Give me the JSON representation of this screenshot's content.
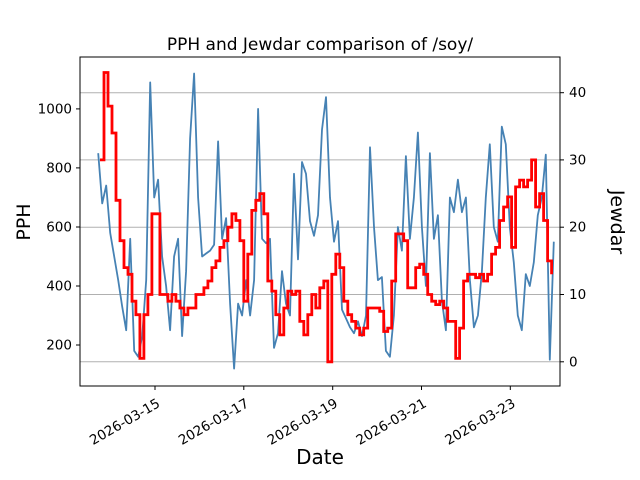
{
  "title": "PPH and Jewdar comparison of /soy/",
  "xlabel": "Date",
  "left_ylabel": "PPH",
  "right_ylabel": "Jewdar",
  "colors": {
    "pph_line": "#4682B4",
    "jewdar_line": "#FF0000",
    "grid": "#B0B0B0",
    "spine": "#000000",
    "background": "#FFFFFF"
  },
  "chart_data": {
    "type": "line",
    "title": "PPH and Jewdar comparison of /soy/",
    "xlabel": "Date",
    "grid": "horizontal, aligned to right (Jewdar) axis ticks",
    "legend": "none",
    "x_axis": {
      "epoch": "2026-03-13 00:00",
      "tick_days": [
        2,
        4,
        6,
        8,
        10
      ],
      "tick_labels": [
        "2026-03-15",
        "2026-03-17",
        "2026-03-19",
        "2026-03-21",
        "2026-03-23"
      ],
      "tick_label_rotation_deg": 30,
      "range_days": [
        0.31,
        11.12
      ]
    },
    "left_axis": {
      "label": "PPH",
      "ticks": [
        200,
        400,
        600,
        800,
        1000
      ],
      "range": [
        61,
        1176
      ]
    },
    "right_axis": {
      "label": "Jewdar",
      "ticks": [
        0,
        10,
        20,
        30,
        40
      ],
      "range": [
        -3.6,
        45.3
      ]
    },
    "series": [
      {
        "name": "PPH",
        "axis": "left",
        "color": "#4682B4",
        "line_width": 1.8,
        "interpolation": "linear",
        "x_start_day": 0.72,
        "x_step_day": 0.09,
        "values": [
          850,
          680,
          740,
          580,
          500,
          420,
          330,
          250,
          560,
          180,
          160,
          230,
          420,
          1090,
          700,
          760,
          500,
          400,
          250,
          500,
          560,
          230,
          450,
          900,
          1120,
          700,
          500,
          510,
          520,
          540,
          890,
          560,
          630,
          340,
          120,
          340,
          300,
          420,
          300,
          420,
          1000,
          560,
          545,
          560,
          190,
          240,
          450,
          340,
          300,
          780,
          490,
          820,
          780,
          620,
          570,
          640,
          930,
          1040,
          700,
          550,
          620,
          320,
          290,
          260,
          240,
          280,
          230,
          300,
          870,
          600,
          420,
          430,
          180,
          160,
          300,
          600,
          520,
          840,
          560,
          700,
          920,
          600,
          400,
          850,
          560,
          640,
          350,
          250,
          700,
          650,
          760,
          650,
          700,
          420,
          260,
          300,
          450,
          700,
          880,
          600,
          550,
          940,
          880,
          600,
          480,
          300,
          250,
          440,
          400,
          480,
          640,
          700,
          845,
          150,
          550
        ]
      },
      {
        "name": "Jewdar",
        "axis": "right",
        "color": "#FF0000",
        "line_width": 2.8,
        "interpolation": "step-post",
        "x_start_day": 0.76,
        "x_step_day": 0.09,
        "values": [
          30,
          43,
          38,
          34,
          24,
          18,
          14,
          13,
          9,
          7,
          0.5,
          7,
          10,
          22,
          22,
          10,
          10,
          9,
          10,
          9,
          8,
          7,
          8,
          8,
          10,
          10,
          11,
          12,
          14,
          15,
          17,
          18,
          20,
          22,
          21,
          18,
          9,
          16,
          22.5,
          24,
          25,
          22,
          12,
          10.5,
          7,
          4,
          8,
          10.5,
          10,
          10.5,
          6,
          4,
          7,
          10,
          8,
          11,
          12,
          0,
          13,
          16,
          14,
          9,
          7,
          6,
          5,
          4,
          5,
          8,
          8,
          8,
          7.5,
          4.5,
          5,
          12,
          19,
          19,
          18,
          11,
          11,
          14,
          14.5,
          13,
          10,
          9,
          8.5,
          9,
          8,
          6,
          6,
          0.5,
          5,
          12,
          13,
          13,
          12.5,
          13,
          12,
          13,
          16,
          17,
          21,
          23,
          24.5,
          17,
          26,
          27,
          26,
          27,
          30,
          23,
          25,
          21,
          15,
          13
        ]
      }
    ]
  }
}
